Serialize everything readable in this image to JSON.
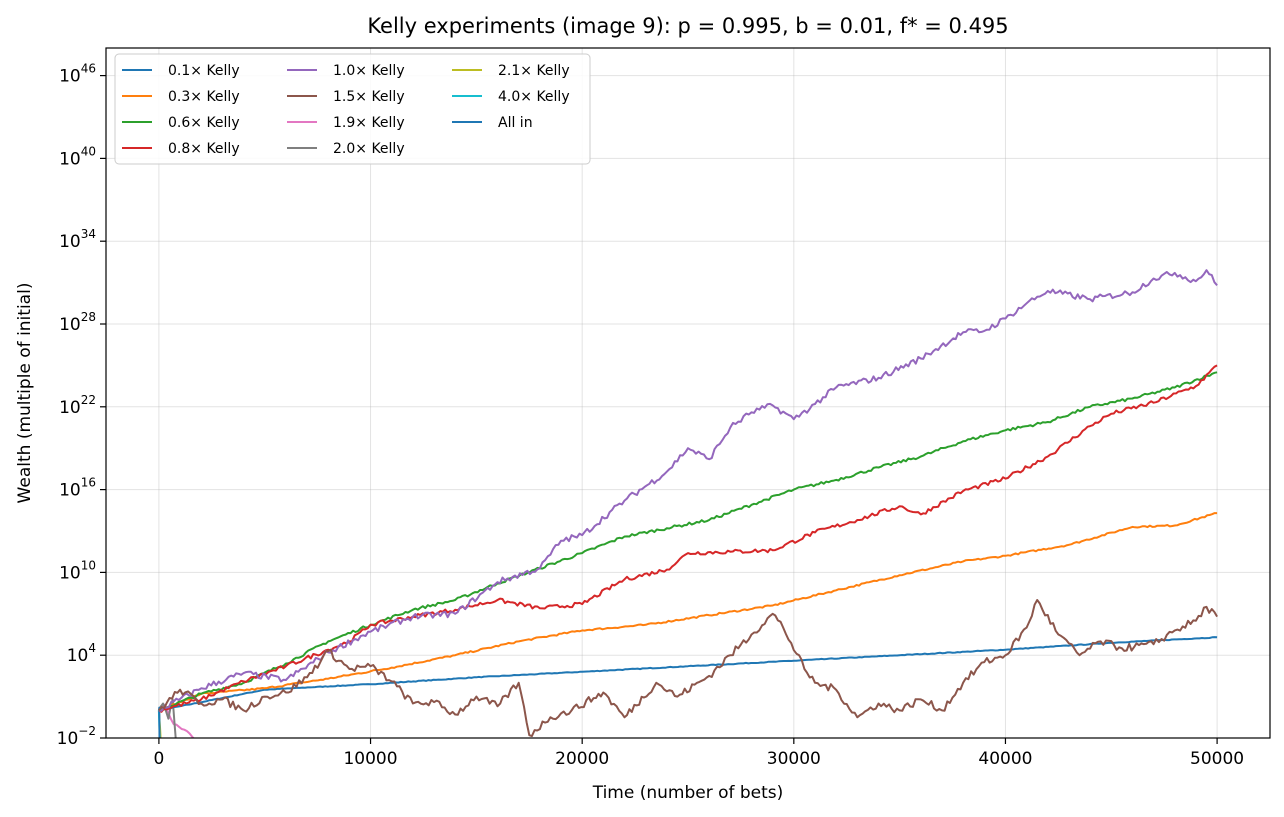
{
  "chart_data": {
    "type": "line",
    "title": "Kelly experiments (image 9): p = 0.995, b = 0.01, f* = 0.495",
    "xlabel": "Time (number of bets)",
    "ylabel": "Wealth (multiple of initial)",
    "xlim": [
      -2500,
      52500
    ],
    "ylim_log10": [
      -2,
      48
    ],
    "yscale": "log",
    "x_ticks": [
      0,
      10000,
      20000,
      30000,
      40000,
      50000
    ],
    "x_tick_labels": [
      "0",
      "10000",
      "20000",
      "30000",
      "40000",
      "50000"
    ],
    "y_ticks_log10": [
      -2,
      4,
      10,
      16,
      22,
      28,
      34,
      40,
      46
    ],
    "y_tick_labels": [
      {
        "base": "10",
        "exp": "−2"
      },
      {
        "base": "10",
        "exp": "4"
      },
      {
        "base": "10",
        "exp": "10"
      },
      {
        "base": "10",
        "exp": "16"
      },
      {
        "base": "10",
        "exp": "22"
      },
      {
        "base": "10",
        "exp": "28"
      },
      {
        "base": "10",
        "exp": "34"
      },
      {
        "base": "10",
        "exp": "40"
      },
      {
        "base": "10",
        "exp": "46"
      }
    ],
    "grid": true,
    "legend_position": "top-left",
    "legend_columns": 3,
    "series": [
      {
        "name": "0.1× Kelly",
        "color": "#1f77b4",
        "log10_wealth": [
          [
            0,
            0
          ],
          [
            5000,
            1.5
          ],
          [
            10000,
            1.9
          ],
          [
            15000,
            2.4
          ],
          [
            20000,
            2.8
          ],
          [
            25000,
            3.2
          ],
          [
            30000,
            3.6
          ],
          [
            35000,
            4.0
          ],
          [
            40000,
            4.4
          ],
          [
            45000,
            4.9
          ],
          [
            50000,
            5.3
          ]
        ]
      },
      {
        "name": "0.3× Kelly",
        "color": "#ff7f0e",
        "log10_wealth": [
          [
            0,
            0
          ],
          [
            2000,
            1.2
          ],
          [
            5000,
            1.6
          ],
          [
            8000,
            2.3
          ],
          [
            11000,
            3.1
          ],
          [
            14000,
            4.0
          ],
          [
            17000,
            5.0
          ],
          [
            20000,
            5.8
          ],
          [
            23000,
            6.2
          ],
          [
            26000,
            6.9
          ],
          [
            29000,
            7.6
          ],
          [
            32000,
            8.7
          ],
          [
            35000,
            9.8
          ],
          [
            38000,
            10.8
          ],
          [
            40000,
            11.2
          ],
          [
            43000,
            12.0
          ],
          [
            46000,
            13.3
          ],
          [
            48000,
            13.4
          ],
          [
            50000,
            14.3
          ]
        ]
      },
      {
        "name": "0.6× Kelly",
        "color": "#2ca02c",
        "log10_wealth": [
          [
            0,
            0
          ],
          [
            2000,
            1.2
          ],
          [
            4000,
            2.0
          ],
          [
            6000,
            3.4
          ],
          [
            8000,
            5.0
          ],
          [
            10000,
            6.2
          ],
          [
            12000,
            7.3
          ],
          [
            14000,
            8.0
          ],
          [
            16000,
            9.2
          ],
          [
            18000,
            10.3
          ],
          [
            20000,
            11.4
          ],
          [
            22000,
            12.6
          ],
          [
            24000,
            13.2
          ],
          [
            26000,
            13.8
          ],
          [
            28000,
            14.9
          ],
          [
            30000,
            16.0
          ],
          [
            32000,
            16.7
          ],
          [
            34000,
            17.6
          ],
          [
            36000,
            18.4
          ],
          [
            38000,
            19.5
          ],
          [
            40000,
            20.3
          ],
          [
            42000,
            20.9
          ],
          [
            44000,
            22.0
          ],
          [
            46000,
            22.6
          ],
          [
            48000,
            23.4
          ],
          [
            50000,
            24.5
          ]
        ]
      },
      {
        "name": "0.8× Kelly",
        "color": "#d62728",
        "log10_wealth": [
          [
            0,
            0
          ],
          [
            2000,
            0.8
          ],
          [
            4000,
            2.1
          ],
          [
            6000,
            3.2
          ],
          [
            8000,
            4.4
          ],
          [
            9000,
            5.0
          ],
          [
            10000,
            6.2
          ],
          [
            12000,
            6.8
          ],
          [
            14000,
            7.3
          ],
          [
            16000,
            8.0
          ],
          [
            18000,
            7.4
          ],
          [
            20000,
            7.7
          ],
          [
            22000,
            9.5
          ],
          [
            24000,
            10.2
          ],
          [
            25000,
            11.4
          ],
          [
            27000,
            11.5
          ],
          [
            29000,
            11.6
          ],
          [
            31000,
            12.9
          ],
          [
            33000,
            13.8
          ],
          [
            35000,
            14.8
          ],
          [
            36000,
            14.2
          ],
          [
            38000,
            15.9
          ],
          [
            40000,
            16.8
          ],
          [
            42000,
            18.4
          ],
          [
            44000,
            20.6
          ],
          [
            45000,
            21.5
          ],
          [
            47000,
            22.3
          ],
          [
            49000,
            23.5
          ],
          [
            50000,
            25.0
          ]
        ]
      },
      {
        "name": "1.0× Kelly",
        "color": "#9467bd",
        "log10_wealth": [
          [
            0,
            0
          ],
          [
            2000,
            1.6
          ],
          [
            4000,
            2.7
          ],
          [
            6000,
            2.2
          ],
          [
            8000,
            4.2
          ],
          [
            10000,
            5.7
          ],
          [
            12000,
            6.8
          ],
          [
            14000,
            7.0
          ],
          [
            16000,
            9.3
          ],
          [
            18000,
            10.3
          ],
          [
            19000,
            12.3
          ],
          [
            20000,
            12.7
          ],
          [
            22000,
            15.2
          ],
          [
            24000,
            17.3
          ],
          [
            25000,
            19.0
          ],
          [
            26000,
            18.2
          ],
          [
            27000,
            20.5
          ],
          [
            28000,
            21.6
          ],
          [
            29000,
            22.1
          ],
          [
            30000,
            21.1
          ],
          [
            31000,
            22.2
          ],
          [
            32000,
            23.4
          ],
          [
            34000,
            24.1
          ],
          [
            36000,
            25.5
          ],
          [
            38000,
            27.4
          ],
          [
            39000,
            27.5
          ],
          [
            40000,
            28.4
          ],
          [
            41000,
            29.5
          ],
          [
            42000,
            30.4
          ],
          [
            44000,
            29.8
          ],
          [
            46000,
            30.3
          ],
          [
            47000,
            31.3
          ],
          [
            48000,
            31.7
          ],
          [
            49000,
            31.1
          ],
          [
            49500,
            31.9
          ],
          [
            50000,
            30.8
          ]
        ]
      },
      {
        "name": "1.5× Kelly",
        "color": "#8c564b",
        "log10_wealth": [
          [
            0,
            0
          ],
          [
            1000,
            1.5
          ],
          [
            2000,
            0.5
          ],
          [
            3000,
            0.8
          ],
          [
            4000,
            0.0
          ],
          [
            5000,
            1.0
          ],
          [
            6000,
            1.3
          ],
          [
            7000,
            2.4
          ],
          [
            8000,
            4.3
          ],
          [
            9000,
            3.0
          ],
          [
            10000,
            3.2
          ],
          [
            11000,
            2.1
          ],
          [
            12000,
            0.5
          ],
          [
            13000,
            0.6
          ],
          [
            14000,
            -0.3
          ],
          [
            15000,
            1.0
          ],
          [
            16000,
            0.3
          ],
          [
            17000,
            2.0
          ],
          [
            17500,
            -1.8
          ],
          [
            18500,
            -0.5
          ],
          [
            19500,
            0.0
          ],
          [
            21000,
            1.3
          ],
          [
            22000,
            -0.5
          ],
          [
            23500,
            2.0
          ],
          [
            24500,
            1.0
          ],
          [
            26000,
            2.5
          ],
          [
            27000,
            4.0
          ],
          [
            28000,
            5.5
          ],
          [
            29000,
            7.0
          ],
          [
            29500,
            6.0
          ],
          [
            30500,
            3.0
          ],
          [
            31000,
            2.0
          ],
          [
            32000,
            1.5
          ],
          [
            33000,
            -0.5
          ],
          [
            34000,
            0.5
          ],
          [
            35000,
            0.0
          ],
          [
            36000,
            0.8
          ],
          [
            37000,
            0.0
          ],
          [
            38000,
            2.0
          ],
          [
            39000,
            3.5
          ],
          [
            40000,
            4.0
          ],
          [
            41000,
            6.0
          ],
          [
            41500,
            8.0
          ],
          [
            42500,
            5.5
          ],
          [
            43500,
            4.0
          ],
          [
            44500,
            5.0
          ],
          [
            45500,
            4.5
          ],
          [
            47000,
            4.8
          ],
          [
            48000,
            5.8
          ],
          [
            49000,
            6.5
          ],
          [
            49500,
            7.5
          ],
          [
            50000,
            6.8
          ]
        ]
      },
      {
        "name": "1.9× Kelly",
        "color": "#e377c2",
        "log10_wealth": [
          [
            0,
            0
          ],
          [
            300,
            0.4
          ],
          [
            700,
            -1.0
          ],
          [
            1200,
            -1.4
          ],
          [
            1700,
            -2.1
          ]
        ]
      },
      {
        "name": "2.0× Kelly",
        "color": "#7f7f7f",
        "log10_wealth": [
          [
            0,
            0
          ],
          [
            200,
            0.5
          ],
          [
            450,
            -0.6
          ],
          [
            650,
            0.8
          ],
          [
            800,
            -2.1
          ]
        ]
      },
      {
        "name": "2.1× Kelly",
        "color": "#bcbd22",
        "log10_wealth": [
          [
            0,
            0
          ],
          [
            50,
            -1.2
          ],
          [
            80,
            -2.1
          ]
        ]
      },
      {
        "name": "4.0× Kelly",
        "color": "#17becf",
        "log10_wealth": [
          [
            0,
            0
          ],
          [
            40,
            -2.1
          ]
        ]
      },
      {
        "name": "All in",
        "color": "#1f77b4",
        "log10_wealth": [
          [
            0,
            0
          ],
          [
            20,
            0.2
          ],
          [
            30,
            -2.1
          ]
        ]
      }
    ]
  }
}
